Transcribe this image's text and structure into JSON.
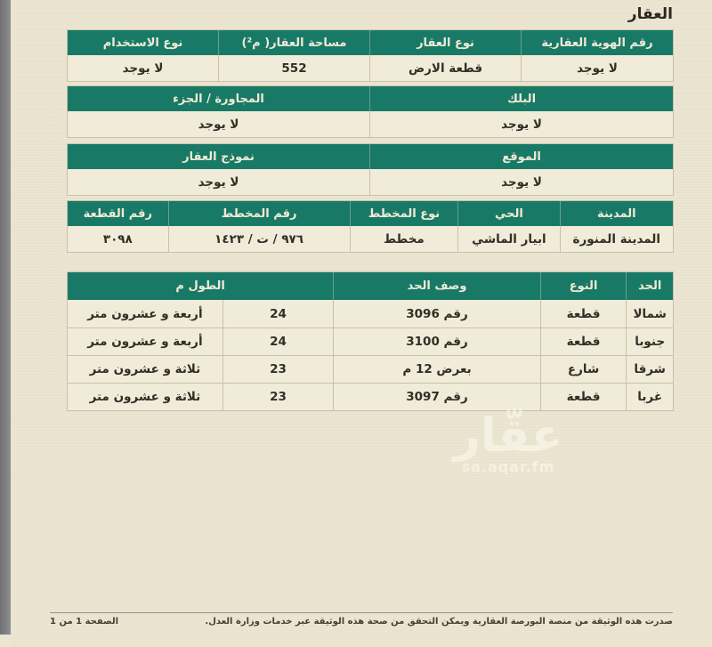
{
  "page": {
    "title": "العقار",
    "watermark": {
      "logo": "عقّار",
      "url_text": "sa.aqar.fm"
    },
    "footer": {
      "note": "صدرت هذه الوثيقة من منصة البورصة العقارية ويمكن التحقق من صحة هذه الوثيقة عبر خدمات وزارة العدل.",
      "page_number": "الصفحة 1 من 1"
    }
  },
  "colors": {
    "header_bg": "#187a66",
    "header_text": "#f0ead6",
    "page_bg": "#ebe5d1",
    "row_bg": "#f1ebd9",
    "border": "#c8c1ab",
    "side_strip": "#87898b"
  },
  "tables": {
    "property": {
      "headers": [
        "رقم الهوية العقارية",
        "نوع العقار",
        "مساحة العقار( م²)",
        "نوع الاستخدام"
      ],
      "values": [
        "لا يوجد",
        "قطعة الارض",
        "552",
        "لا يوجد"
      ]
    },
    "block": {
      "headers": [
        "البلك",
        "المجاورة / الجزء"
      ],
      "values": [
        "لا يوجد",
        "لا يوجد"
      ]
    },
    "location": {
      "headers": [
        "الموقع",
        "نموذج العقار"
      ],
      "values": [
        "لا يوجد",
        "لا يوجد"
      ]
    },
    "plan": {
      "headers": [
        "المدينة",
        "الحي",
        "نوع المخطط",
        "رقم المخطط",
        "رقم القطعة"
      ],
      "values": [
        "المدينة المنورة",
        "ابيار الماشي",
        "مخطط",
        "٩٧٦ / ت / ١٤٢٣",
        "٣٠٩٨"
      ]
    },
    "boundaries": {
      "headers": [
        "الحد",
        "النوع",
        "وصف الحد",
        "الطول م"
      ],
      "rows": [
        {
          "side": "شمالا",
          "type": "قطعة",
          "desc": "رقم 3096",
          "len_num": "24",
          "len_text": "أربعة و عشرون متر"
        },
        {
          "side": "جنوبا",
          "type": "قطعة",
          "desc": "رقم 3100",
          "len_num": "24",
          "len_text": "أربعة و عشرون متر"
        },
        {
          "side": "شرقا",
          "type": "شارع",
          "desc": "بعرض 12 م",
          "len_num": "23",
          "len_text": "ثلاثة و عشرون متر"
        },
        {
          "side": "غربا",
          "type": "قطعة",
          "desc": "رقم 3097",
          "len_num": "23",
          "len_text": "ثلاثة و عشرون متر"
        }
      ]
    }
  }
}
